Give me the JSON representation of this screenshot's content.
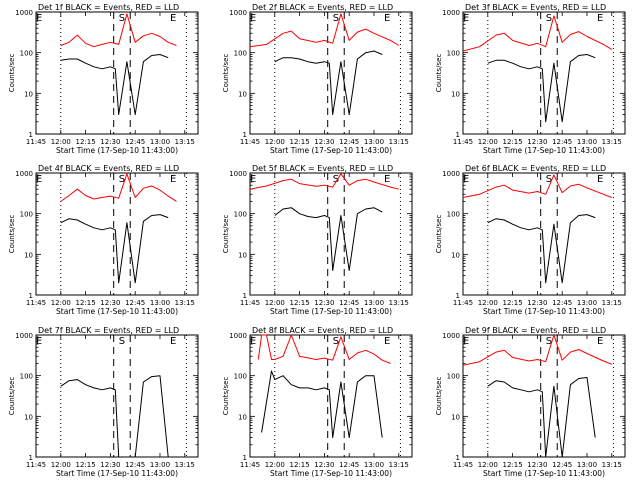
{
  "chart_data": [
    {
      "type": "line",
      "title": "Det 1f BLACK = Events, RED = LLD",
      "xlabel": "Start Time (17-Sep-10 11:43:00)",
      "ylabel": "Counts/sec",
      "yscale": "log",
      "ylim": [
        1,
        1000
      ],
      "xticks": [
        "11:45",
        "12:00",
        "12:15",
        "12:30",
        "12:45",
        "13:00",
        "13:15"
      ],
      "yticks": [
        "1",
        "10",
        "100",
        "1000"
      ],
      "markers": [
        "E",
        "S",
        "E"
      ],
      "series": [
        {
          "color": "#ff0000",
          "x": [
            "12:00",
            "12:05",
            "12:10",
            "12:15",
            "12:20",
            "12:25",
            "12:30",
            "12:35",
            "12:40",
            "12:45",
            "12:50",
            "12:55",
            "13:00",
            "13:05",
            "13:10"
          ],
          "values": [
            150,
            180,
            270,
            170,
            140,
            160,
            180,
            160,
            900,
            180,
            260,
            300,
            250,
            180,
            150
          ]
        },
        {
          "color": "#000000",
          "x": [
            "12:00",
            "12:05",
            "12:10",
            "12:15",
            "12:20",
            "12:25",
            "12:30",
            "12:33",
            "12:35",
            "12:40",
            "12:45",
            "12:50",
            "12:55",
            "13:00",
            "13:05"
          ],
          "values": [
            65,
            70,
            70,
            55,
            45,
            40,
            45,
            40,
            3,
            60,
            3,
            60,
            85,
            90,
            75
          ]
        }
      ]
    },
    {
      "type": "line",
      "title": "Det 2f BLACK = Events, RED = LLD",
      "xlabel": "Start Time (17-Sep-10 11:43:00)",
      "ylabel": "Counts/sec",
      "yscale": "log",
      "ylim": [
        1,
        1000
      ],
      "xticks": [
        "11:45",
        "12:00",
        "12:15",
        "12:30",
        "12:45",
        "13:00",
        "13:15"
      ],
      "yticks": [
        "1",
        "10",
        "100",
        "1000"
      ],
      "markers": [
        "E",
        "S",
        "E"
      ],
      "series": [
        {
          "color": "#ff0000",
          "x": [
            "11:45",
            "11:55",
            "12:05",
            "12:10",
            "12:15",
            "12:25",
            "12:30",
            "12:35",
            "12:40",
            "12:45",
            "12:50",
            "12:55",
            "13:00",
            "13:10",
            "13:15"
          ],
          "values": [
            140,
            160,
            300,
            340,
            220,
            180,
            200,
            170,
            900,
            200,
            320,
            380,
            300,
            200,
            150
          ]
        },
        {
          "color": "#000000",
          "x": [
            "12:00",
            "12:05",
            "12:10",
            "12:15",
            "12:20",
            "12:25",
            "12:30",
            "12:33",
            "12:35",
            "12:40",
            "12:45",
            "12:50",
            "12:55",
            "13:00",
            "13:05"
          ],
          "values": [
            60,
            75,
            75,
            70,
            60,
            55,
            60,
            55,
            3,
            60,
            3,
            70,
            100,
            110,
            90
          ]
        }
      ]
    },
    {
      "type": "line",
      "title": "Det 3f BLACK = Events, RED = LLD",
      "xlabel": "Start Time (17-Sep-10 11:43:00)",
      "ylabel": "Counts/sec",
      "yscale": "log",
      "ylim": [
        1,
        1000
      ],
      "xticks": [
        "11:45",
        "12:00",
        "12:15",
        "12:30",
        "12:45",
        "13:00",
        "13:15"
      ],
      "yticks": [
        "1",
        "10",
        "100",
        "1000"
      ],
      "markers": [
        "E",
        "S",
        "E"
      ],
      "series": [
        {
          "color": "#ff0000",
          "x": [
            "11:45",
            "11:55",
            "12:05",
            "12:10",
            "12:15",
            "12:25",
            "12:30",
            "12:35",
            "12:40",
            "12:45",
            "12:50",
            "12:55",
            "13:00",
            "13:10",
            "13:15"
          ],
          "values": [
            110,
            140,
            270,
            300,
            200,
            150,
            170,
            140,
            800,
            180,
            280,
            330,
            250,
            160,
            120
          ]
        },
        {
          "color": "#000000",
          "x": [
            "12:00",
            "12:05",
            "12:10",
            "12:15",
            "12:20",
            "12:25",
            "12:30",
            "12:33",
            "12:35",
            "12:40",
            "12:45",
            "12:50",
            "12:55",
            "13:00",
            "13:05"
          ],
          "values": [
            55,
            65,
            65,
            55,
            45,
            40,
            45,
            40,
            2,
            55,
            2,
            60,
            85,
            90,
            75
          ]
        }
      ]
    },
    {
      "type": "line",
      "title": "Det 4f BLACK = Events, RED = LLD",
      "xlabel": "Start Time (17-Sep-10 11:43:00)",
      "ylabel": "Counts/sec",
      "yscale": "log",
      "ylim": [
        1,
        1000
      ],
      "xticks": [
        "11:45",
        "12:00",
        "12:15",
        "12:30",
        "12:45",
        "13:00",
        "13:15"
      ],
      "yticks": [
        "1",
        "10",
        "100",
        "1000"
      ],
      "markers": [
        "E",
        "S",
        "E"
      ],
      "series": [
        {
          "color": "#ff0000",
          "x": [
            "12:00",
            "12:05",
            "12:10",
            "12:15",
            "12:20",
            "12:25",
            "12:30",
            "12:35",
            "12:40",
            "12:45",
            "12:50",
            "12:55",
            "13:00",
            "13:05",
            "13:10"
          ],
          "values": [
            200,
            280,
            400,
            280,
            230,
            250,
            270,
            240,
            950,
            250,
            420,
            480,
            380,
            270,
            200
          ]
        },
        {
          "color": "#000000",
          "x": [
            "12:00",
            "12:05",
            "12:10",
            "12:15",
            "12:20",
            "12:25",
            "12:30",
            "12:33",
            "12:35",
            "12:40",
            "12:45",
            "12:50",
            "12:55",
            "13:00",
            "13:05"
          ],
          "values": [
            60,
            75,
            70,
            55,
            45,
            40,
            45,
            40,
            2,
            60,
            2,
            65,
            90,
            95,
            80
          ]
        }
      ]
    },
    {
      "type": "line",
      "title": "Det 5f BLACK = Events, RED = LLD",
      "xlabel": "Start Time (17-Sep-10 11:43:00)",
      "ylabel": "Counts/sec",
      "yscale": "log",
      "ylim": [
        1,
        1000
      ],
      "xticks": [
        "11:45",
        "12:00",
        "12:15",
        "12:30",
        "12:45",
        "13:00",
        "13:15"
      ],
      "yticks": [
        "1",
        "10",
        "100",
        "1000"
      ],
      "markers": [
        "E",
        "S",
        "E"
      ],
      "series": [
        {
          "color": "#ff0000",
          "x": [
            "11:45",
            "11:55",
            "12:05",
            "12:10",
            "12:15",
            "12:25",
            "12:30",
            "12:35",
            "12:40",
            "12:45",
            "12:50",
            "12:55",
            "13:00",
            "13:10",
            "13:15"
          ],
          "values": [
            400,
            480,
            650,
            700,
            550,
            470,
            500,
            450,
            950,
            500,
            650,
            700,
            600,
            450,
            400
          ]
        },
        {
          "color": "#000000",
          "x": [
            "12:00",
            "12:05",
            "12:10",
            "12:15",
            "12:20",
            "12:25",
            "12:30",
            "12:33",
            "12:35",
            "12:40",
            "12:45",
            "12:50",
            "12:55",
            "13:00",
            "13:05"
          ],
          "values": [
            90,
            130,
            140,
            100,
            85,
            80,
            90,
            80,
            4,
            90,
            4,
            100,
            130,
            140,
            110
          ]
        }
      ]
    },
    {
      "type": "line",
      "title": "Det 6f BLACK = Events, RED = LLD",
      "xlabel": "Start Time (17-Sep-10 11:43:00)",
      "ylabel": "Counts/sec",
      "yscale": "log",
      "ylim": [
        1,
        1000
      ],
      "xticks": [
        "11:45",
        "12:00",
        "12:15",
        "12:30",
        "12:45",
        "13:00",
        "13:15"
      ],
      "yticks": [
        "1",
        "10",
        "100",
        "1000"
      ],
      "markers": [
        "E",
        "S",
        "E"
      ],
      "series": [
        {
          "color": "#ff0000",
          "x": [
            "11:45",
            "11:55",
            "12:05",
            "12:10",
            "12:15",
            "12:25",
            "12:30",
            "12:35",
            "12:40",
            "12:45",
            "12:50",
            "12:55",
            "13:00",
            "13:10",
            "13:15"
          ],
          "values": [
            250,
            300,
            450,
            500,
            380,
            320,
            350,
            300,
            900,
            330,
            480,
            530,
            430,
            300,
            250
          ]
        },
        {
          "color": "#000000",
          "x": [
            "12:00",
            "12:05",
            "12:10",
            "12:15",
            "12:20",
            "12:25",
            "12:30",
            "12:33",
            "12:35",
            "12:40",
            "12:45",
            "12:50",
            "12:55",
            "13:00",
            "13:05"
          ],
          "values": [
            60,
            75,
            70,
            55,
            45,
            40,
            45,
            40,
            2,
            55,
            2,
            60,
            90,
            95,
            80
          ]
        }
      ]
    },
    {
      "type": "line",
      "title": "Det 7f BLACK = Events, RED = LLD",
      "xlabel": "Start Time (17-Sep-10 11:43:00)",
      "ylabel": "Counts/sec",
      "yscale": "log",
      "ylim": [
        1,
        1000
      ],
      "xticks": [
        "11:45",
        "12:00",
        "12:15",
        "12:30",
        "12:45",
        "13:00",
        "13:15"
      ],
      "yticks": [
        "1",
        "10",
        "100",
        "1000"
      ],
      "markers": [
        "E",
        "S",
        "E"
      ],
      "series": [
        {
          "color": "#000000",
          "x": [
            "12:00",
            "12:05",
            "12:10",
            "12:15",
            "12:20",
            "12:25",
            "12:30",
            "12:33",
            "12:35",
            "12:40",
            "12:45",
            "12:50",
            "12:55",
            "13:00",
            "13:05"
          ],
          "values": [
            55,
            75,
            80,
            60,
            50,
            45,
            50,
            45,
            1,
            1,
            1,
            70,
            95,
            100,
            1
          ]
        }
      ]
    },
    {
      "type": "line",
      "title": "Det 8f BLACK = Events, RED = LLD",
      "xlabel": "Start Time (17-Sep-10 11:43:00)",
      "ylabel": "Counts/sec",
      "yscale": "log",
      "ylim": [
        1,
        1000
      ],
      "xticks": [
        "11:45",
        "12:00",
        "12:15",
        "12:30",
        "12:45",
        "13:00",
        "13:15"
      ],
      "yticks": [
        "1",
        "10",
        "100",
        "1000"
      ],
      "markers": [
        "E",
        "S",
        "E"
      ],
      "series": [
        {
          "color": "#ff0000",
          "x": [
            "11:50",
            "11:52",
            "11:55",
            "11:58",
            "12:00",
            "12:05",
            "12:10",
            "12:15",
            "12:25",
            "12:30",
            "12:35",
            "12:40",
            "12:45",
            "12:50",
            "12:55",
            "13:00",
            "13:05",
            "13:10"
          ],
          "values": [
            250,
            1000,
            1000,
            250,
            250,
            300,
            1000,
            300,
            250,
            270,
            240,
            900,
            250,
            360,
            420,
            340,
            240,
            200
          ]
        },
        {
          "color": "#000000",
          "x": [
            "11:52",
            "11:58",
            "12:00",
            "12:05",
            "12:10",
            "12:15",
            "12:20",
            "12:25",
            "12:30",
            "12:33",
            "12:35",
            "12:40",
            "12:45",
            "12:50",
            "12:55",
            "13:00",
            "13:05"
          ],
          "values": [
            4,
            130,
            80,
            100,
            60,
            50,
            50,
            45,
            50,
            45,
            3,
            70,
            3,
            70,
            100,
            100,
            3
          ]
        }
      ]
    },
    {
      "type": "line",
      "title": "Det 9f BLACK = Events, RED = LLD",
      "xlabel": "Start Time (17-Sep-10 11:43:00)",
      "ylabel": "Counts/sec",
      "yscale": "log",
      "ylim": [
        1,
        1000
      ],
      "xticks": [
        "11:45",
        "12:00",
        "12:15",
        "12:30",
        "12:45",
        "13:00",
        "13:15"
      ],
      "yticks": [
        "1",
        "10",
        "100",
        "1000"
      ],
      "markers": [
        "E",
        "S",
        "E"
      ],
      "series": [
        {
          "color": "#ff0000",
          "x": [
            "11:45",
            "11:55",
            "12:05",
            "12:10",
            "12:15",
            "12:25",
            "12:30",
            "12:35",
            "12:40",
            "12:45",
            "12:50",
            "12:55",
            "13:00",
            "13:10",
            "13:15"
          ],
          "values": [
            180,
            220,
            380,
            420,
            280,
            230,
            250,
            220,
            1000,
            240,
            380,
            440,
            350,
            230,
            190
          ]
        },
        {
          "color": "#000000",
          "x": [
            "12:00",
            "12:05",
            "12:10",
            "12:15",
            "12:20",
            "12:25",
            "12:30",
            "12:33",
            "12:35",
            "12:40",
            "12:45",
            "12:50",
            "12:55",
            "13:00",
            "13:05"
          ],
          "values": [
            55,
            75,
            70,
            50,
            45,
            40,
            45,
            40,
            1,
            55,
            1,
            60,
            85,
            90,
            3
          ]
        }
      ]
    }
  ]
}
